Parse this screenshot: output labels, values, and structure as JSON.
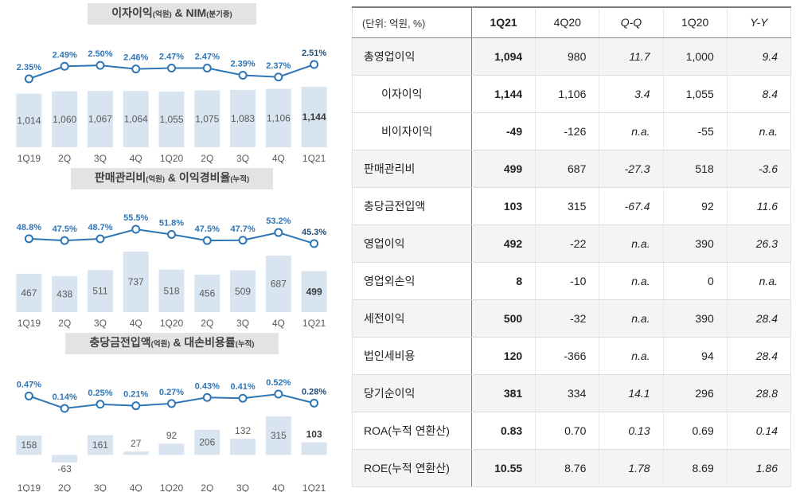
{
  "colors": {
    "bar_fill": "#d9e4f1",
    "line": "#2e75b6",
    "line_label": "#2e75b6",
    "line_label_last": "#1f4e79",
    "bar_label": "#595959",
    "bar_label_last": "#3a3a3a",
    "axis_label": "#595959"
  },
  "chart_data": [
    {
      "type": "bar+line",
      "bar_series": "이자이익",
      "line_series": "NIM",
      "title_segments": [
        {
          "text": "이자이익",
          "small": false
        },
        {
          "text": "(억원)",
          "small": true
        },
        {
          "text": " & NIM",
          "small": false
        },
        {
          "text": "(분기중)",
          "small": true
        }
      ],
      "categories": [
        "1Q19",
        "2Q",
        "3Q",
        "4Q",
        "1Q20",
        "2Q",
        "3Q",
        "4Q",
        "1Q21"
      ],
      "bars": [
        1014,
        1060,
        1067,
        1064,
        1055,
        1075,
        1083,
        1106,
        1144
      ],
      "bar_labels": [
        "1,014",
        "1,060",
        "1,067",
        "1,064",
        "1,055",
        "1,075",
        "1,083",
        "1,106",
        "1,144"
      ],
      "line": [
        2.35,
        2.49,
        2.5,
        2.46,
        2.47,
        2.47,
        2.39,
        2.37,
        2.51
      ],
      "line_labels": [
        "2.35%",
        "2.49%",
        "2.50%",
        "2.46%",
        "2.47%",
        "2.47%",
        "2.39%",
        "2.37%",
        "2.51%"
      ]
    },
    {
      "type": "bar+line",
      "bar_series": "판매관리비",
      "line_series": "이익경비율",
      "title_segments": [
        {
          "text": "판매관리비",
          "small": false
        },
        {
          "text": "(억원)",
          "small": true
        },
        {
          "text": " & 이익경비율",
          "small": false
        },
        {
          "text": "(누적)",
          "small": true
        }
      ],
      "categories": [
        "1Q19",
        "2Q",
        "3Q",
        "4Q",
        "1Q20",
        "2Q",
        "3Q",
        "4Q",
        "1Q21"
      ],
      "bars": [
        467,
        438,
        511,
        737,
        518,
        456,
        509,
        687,
        499
      ],
      "bar_labels": [
        "467",
        "438",
        "511",
        "737",
        "518",
        "456",
        "509",
        "687",
        "499"
      ],
      "line": [
        48.8,
        47.5,
        48.7,
        55.5,
        51.8,
        47.5,
        47.7,
        53.2,
        45.3
      ],
      "line_labels": [
        "48.8%",
        "47.5%",
        "48.7%",
        "55.5%",
        "51.8%",
        "47.5%",
        "47.7%",
        "53.2%",
        "45.3%"
      ]
    },
    {
      "type": "bar+line",
      "bar_series": "충당금전입액",
      "line_series": "대손비용률",
      "title_segments": [
        {
          "text": "충당금전입액",
          "small": false
        },
        {
          "text": "(억원)",
          "small": true
        },
        {
          "text": " & 대손비용률",
          "small": false
        },
        {
          "text": "(누적)",
          "small": true
        }
      ],
      "categories": [
        "1Q19",
        "2Q",
        "3Q",
        "4Q",
        "1Q20",
        "2Q",
        "3Q",
        "4Q",
        "1Q21"
      ],
      "bars": [
        158,
        -63,
        161,
        27,
        92,
        206,
        132,
        315,
        103
      ],
      "bar_labels": [
        "158",
        "-63",
        "161",
        "27",
        "92",
        "206",
        "132",
        "315",
        "103"
      ],
      "line": [
        0.47,
        0.14,
        0.25,
        0.21,
        0.27,
        0.43,
        0.41,
        0.52,
        0.28
      ],
      "line_labels": [
        "0.47%",
        "0.14%",
        "0.25%",
        "0.21%",
        "0.27%",
        "0.43%",
        "0.41%",
        "0.52%",
        "0.28%"
      ]
    }
  ],
  "table": {
    "header": [
      "(단위: 억원, %)",
      "1Q21",
      "4Q20",
      "Q-Q",
      "1Q20",
      "Y-Y"
    ],
    "rows": [
      {
        "label": "총영업이익",
        "indent": false,
        "shaded": true,
        "values": [
          "1,094",
          "980",
          "11.7",
          "1,000",
          "9.4"
        ]
      },
      {
        "label": "이자이익",
        "indent": true,
        "shaded": false,
        "values": [
          "1,144",
          "1,106",
          "3.4",
          "1,055",
          "8.4"
        ]
      },
      {
        "label": "비이자이익",
        "indent": true,
        "shaded": false,
        "values": [
          "-49",
          "-126",
          "n.a.",
          "-55",
          "n.a."
        ]
      },
      {
        "label": "판매관리비",
        "indent": false,
        "shaded": true,
        "values": [
          "499",
          "687",
          "-27.3",
          "518",
          "-3.6"
        ]
      },
      {
        "label": "충당금전입액",
        "indent": false,
        "shaded": false,
        "values": [
          "103",
          "315",
          "-67.4",
          "92",
          "11.6"
        ]
      },
      {
        "label": "영업이익",
        "indent": false,
        "shaded": true,
        "values": [
          "492",
          "-22",
          "n.a.",
          "390",
          "26.3"
        ]
      },
      {
        "label": "영업외손익",
        "indent": false,
        "shaded": false,
        "values": [
          "8",
          "-10",
          "n.a.",
          "0",
          "n.a."
        ]
      },
      {
        "label": "세전이익",
        "indent": false,
        "shaded": true,
        "values": [
          "500",
          "-32",
          "n.a.",
          "390",
          "28.4"
        ]
      },
      {
        "label": "법인세비용",
        "indent": false,
        "shaded": false,
        "values": [
          "120",
          "-366",
          "n.a.",
          "94",
          "28.4"
        ]
      },
      {
        "label": "당기순이익",
        "indent": false,
        "shaded": true,
        "values": [
          "381",
          "334",
          "14.1",
          "296",
          "28.8"
        ]
      },
      {
        "label": "ROA(누적 연환산)",
        "indent": false,
        "shaded": false,
        "values": [
          "0.83",
          "0.70",
          "0.13",
          "0.69",
          "0.14"
        ]
      },
      {
        "label": "ROE(누적 연환산)",
        "indent": false,
        "shaded": true,
        "values": [
          "10.55",
          "8.76",
          "1.78",
          "8.69",
          "1.86"
        ]
      }
    ]
  }
}
